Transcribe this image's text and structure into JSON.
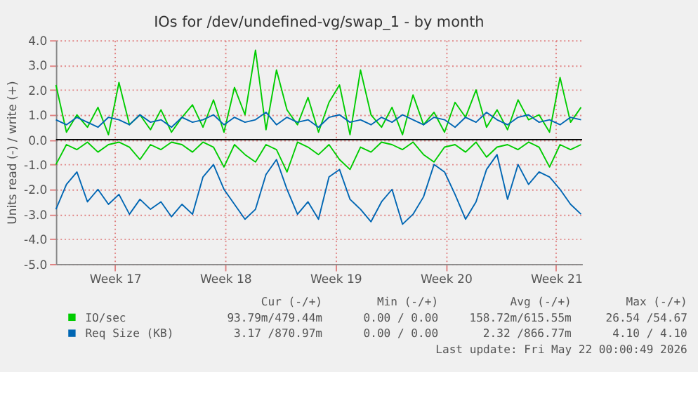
{
  "chart_data": {
    "type": "line",
    "title": "IOs for /dev/undefined-vg/swap_1 - by month",
    "ylabel": "Units read (-) / write (+)",
    "x": [
      "2026-04-16T06:00",
      "2026-04-16T22:00",
      "2026-04-17T14:00",
      "2026-04-18T06:00",
      "2026-04-18T22:00",
      "2026-04-19T14:00",
      "2026-04-20T06:00",
      "2026-04-20T22:00",
      "2026-04-21T14:00",
      "2026-04-22T06:00",
      "2026-04-22T22:00",
      "2026-04-23T14:00",
      "2026-04-24T06:00",
      "2026-04-24T22:00",
      "2026-04-25T14:00",
      "2026-04-26T06:00",
      "2026-04-26T22:00",
      "2026-04-27T14:00",
      "2026-04-28T06:00",
      "2026-04-28T22:00",
      "2026-04-29T14:00",
      "2026-04-30T06:00",
      "2026-04-30T22:00",
      "2026-05-01T14:00",
      "2026-05-02T06:00",
      "2026-05-02T22:00",
      "2026-05-03T14:00",
      "2026-05-04T06:00",
      "2026-05-04T22:00",
      "2026-05-05T14:00",
      "2026-05-06T06:00",
      "2026-05-06T22:00",
      "2026-05-07T14:00",
      "2026-05-08T06:00",
      "2026-05-08T22:00",
      "2026-05-09T14:00",
      "2026-05-10T06:00",
      "2026-05-10T22:00",
      "2026-05-11T14:00",
      "2026-05-12T06:00",
      "2026-05-12T22:00",
      "2026-05-13T14:00",
      "2026-05-14T06:00",
      "2026-05-14T22:00",
      "2026-05-15T14:00",
      "2026-05-16T06:00",
      "2026-05-16T22:00",
      "2026-05-17T14:00",
      "2026-05-18T06:00",
      "2026-05-18T22:00",
      "2026-05-19T14:00"
    ],
    "series": [
      {
        "name": "IO/sec",
        "color": "#00cc00",
        "values": [
          2.2,
          0.3,
          1.0,
          0.5,
          1.3,
          0.2,
          2.3,
          0.6,
          1.0,
          0.4,
          1.2,
          0.3,
          0.9,
          1.4,
          0.5,
          1.6,
          0.3,
          2.1,
          1.0,
          3.6,
          0.4,
          2.8,
          1.2,
          0.6,
          1.7,
          0.3,
          1.5,
          2.2,
          0.2,
          2.8,
          1.0,
          0.5,
          1.3,
          0.2,
          1.8,
          0.6,
          1.1,
          0.3,
          1.5,
          0.9,
          2.0,
          0.5,
          1.2,
          0.4,
          1.6,
          0.8,
          1.0,
          0.3,
          2.5,
          0.7,
          1.3
        ]
      },
      {
        "color": "#00cc00",
        "values": [
          -1.0,
          -0.2,
          -0.4,
          -0.1,
          -0.5,
          -0.2,
          -0.1,
          -0.3,
          -0.8,
          -0.2,
          -0.4,
          -0.1,
          -0.2,
          -0.5,
          -0.1,
          -0.3,
          -1.1,
          -0.2,
          -0.6,
          -0.9,
          -0.2,
          -0.4,
          -1.3,
          -0.1,
          -0.3,
          -0.6,
          -0.2,
          -0.8,
          -1.2,
          -0.3,
          -0.5,
          -0.1,
          -0.2,
          -0.4,
          -0.1,
          -0.6,
          -0.9,
          -0.3,
          -0.2,
          -0.5,
          -0.1,
          -0.7,
          -0.3,
          -0.2,
          -0.4,
          -0.1,
          -0.3,
          -1.1,
          -0.2,
          -0.4,
          -0.2
        ]
      },
      {
        "name": "Req Size (KB)",
        "color": "#0066b3",
        "values": [
          0.8,
          0.6,
          0.9,
          0.7,
          0.5,
          0.9,
          0.8,
          0.6,
          1.0,
          0.7,
          0.8,
          0.5,
          0.9,
          0.7,
          0.8,
          1.0,
          0.6,
          0.9,
          0.7,
          0.8,
          1.1,
          0.6,
          0.9,
          0.7,
          0.8,
          0.5,
          0.9,
          1.0,
          0.7,
          0.8,
          0.6,
          0.9,
          0.7,
          1.0,
          0.8,
          0.6,
          0.9,
          0.8,
          0.5,
          0.9,
          0.7,
          1.1,
          0.8,
          0.6,
          0.9,
          1.0,
          0.7,
          0.8,
          0.6,
          0.9,
          0.8
        ]
      },
      {
        "color": "#0066b3",
        "values": [
          -2.8,
          -1.8,
          -1.3,
          -2.5,
          -2.0,
          -2.6,
          -2.2,
          -3.0,
          -2.4,
          -2.8,
          -2.5,
          -3.1,
          -2.6,
          -3.0,
          -1.5,
          -1.0,
          -2.0,
          -2.6,
          -3.2,
          -2.8,
          -1.4,
          -0.8,
          -2.0,
          -3.0,
          -2.5,
          -3.2,
          -1.5,
          -1.2,
          -2.4,
          -2.8,
          -3.3,
          -2.5,
          -2.0,
          -3.4,
          -3.0,
          -2.3,
          -1.0,
          -1.3,
          -2.2,
          -3.2,
          -2.5,
          -1.2,
          -0.6,
          -2.4,
          -1.0,
          -1.8,
          -1.3,
          -1.5,
          -2.0,
          -2.6,
          -3.0
        ]
      }
    ],
    "xlim": [
      "2026-04-16T06:00",
      "2026-05-19T15:36"
    ],
    "xticks": [
      {
        "value": "2026-04-20",
        "label": "Week 17"
      },
      {
        "value": "2026-04-27",
        "label": "Week 18"
      },
      {
        "value": "2026-05-04",
        "label": "Week 19"
      },
      {
        "value": "2026-05-11",
        "label": "Week 20"
      },
      {
        "value": "2026-05-18",
        "label": "Week 21"
      }
    ],
    "ylim": [
      -5,
      4
    ],
    "yticks": [
      {
        "value": -5,
        "label": "-5.0"
      },
      {
        "value": -4,
        "label": "-4.0"
      },
      {
        "value": -3,
        "label": "-3.0"
      },
      {
        "value": -2,
        "label": "-2.0"
      },
      {
        "value": -1,
        "label": "-1.0"
      },
      {
        "value": 0,
        "label": "0.0"
      },
      {
        "value": 1,
        "label": "1.0"
      },
      {
        "value": 2,
        "label": "2.0"
      },
      {
        "value": 3,
        "label": "3.0"
      },
      {
        "value": 4,
        "label": "4.0"
      }
    ],
    "ref_lines": [
      {
        "axis": "y",
        "value": 0,
        "color": "#000000"
      }
    ],
    "grid": true,
    "legend": "bottom",
    "line_style": "solid",
    "marker": "none",
    "annotations": [
      "Cur (-/+)",
      "Min (-/+)",
      "Avg (-/+)",
      "Max (-/+)",
      "93.79m/479.44m",
      "0.00 / 0.00",
      "158.72m/615.55m",
      "26.54 /54.67",
      "3.17 /870.97m",
      "0.00 / 0.00",
      "2.32 /866.77m",
      "4.10 / 4.10",
      "Last update: Fri May 22 00:00:49 2026"
    ]
  }
}
